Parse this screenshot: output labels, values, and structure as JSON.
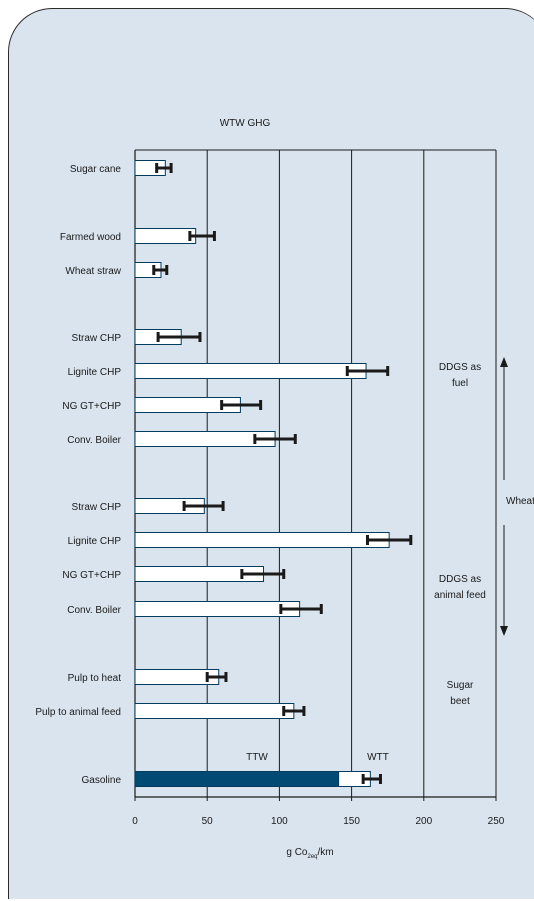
{
  "chart_data": {
    "type": "bar",
    "title": "WTW GHG",
    "xlabel_main": "g Co",
    "xlabel_sub": "2eq",
    "xlabel_tail": "/km",
    "xlim": [
      0,
      250
    ],
    "xticks": [
      0,
      50,
      100,
      150,
      200,
      250
    ],
    "grid": "vertical at 50, 100, 150, 200",
    "categories": [
      "Sugar cane",
      "Farmed wood",
      "Wheat straw",
      "Straw CHP",
      "Lignite CHP",
      "NG GT+CHP",
      "Conv. Boiler",
      "Straw CHP",
      "Lignite CHP",
      "NG GT+CHP",
      "Conv. Boiler",
      "Pulp to heat",
      "Pulp to animal feed",
      "Gasoline"
    ],
    "values": [
      21,
      42,
      18,
      32,
      160,
      73,
      97,
      48,
      176,
      89,
      114,
      58,
      110,
      163
    ],
    "error_low": [
      15,
      38,
      13,
      16,
      147,
      60,
      83,
      34,
      161,
      74,
      101,
      50,
      103,
      158
    ],
    "error_high": [
      25,
      55,
      22,
      45,
      175,
      87,
      111,
      61,
      191,
      103,
      129,
      63,
      117,
      170
    ],
    "gasoline_ttw": 141,
    "group_labels": {
      "fuel_line1": "DDGS as",
      "fuel_line2": "fuel",
      "feed_line1": "DDGS as",
      "feed_line2": "animal feed",
      "wheat": "Wheat",
      "beet_line1": "Sugar",
      "beet_line2": "beet"
    },
    "annotations": {
      "ttw": "TTW",
      "wtt": "WTT"
    },
    "colors": {
      "panel": "#d9e4ee",
      "bar_fill": "#ffffff",
      "bar_stroke": "#003c5f",
      "ttw_fill": "#004a73",
      "error": "#1a1a1a"
    }
  }
}
